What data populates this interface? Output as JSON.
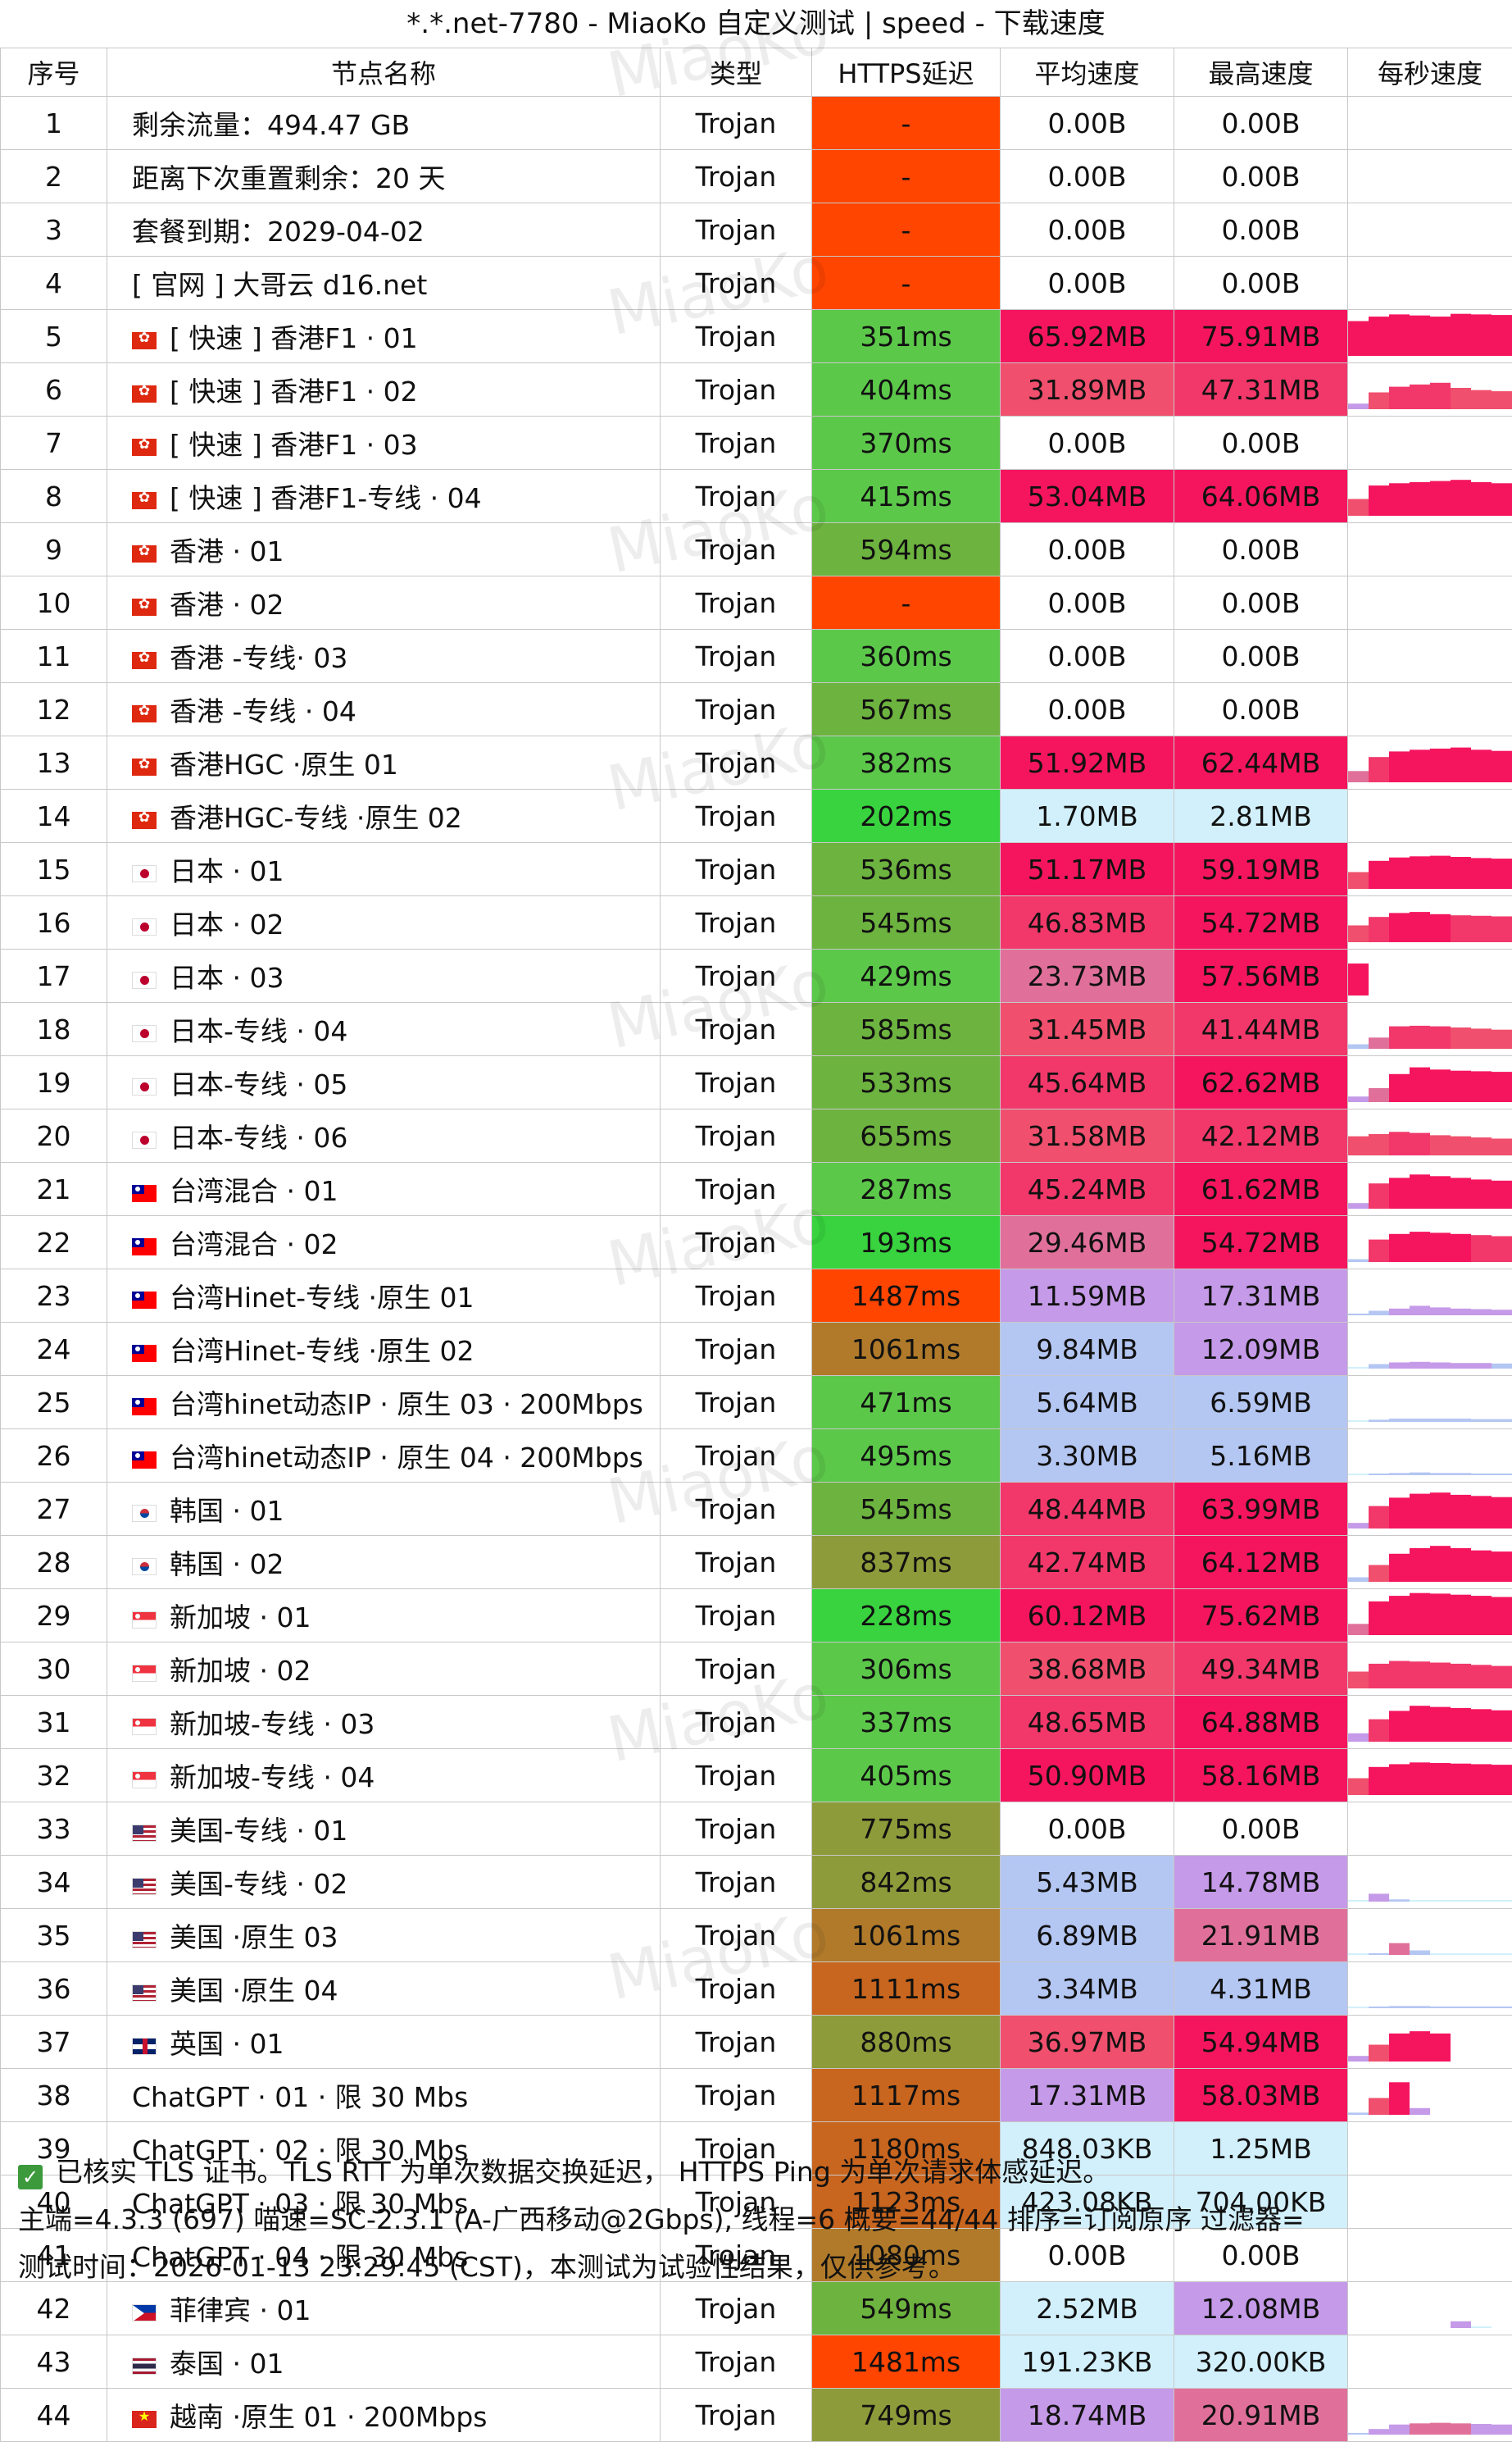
{
  "title": "*.*.net-7780 - MiaoKo 自定义测试 | speed - 下载速度",
  "watermark": "MiaoKo",
  "headers": [
    "序号",
    "节点名称",
    "类型",
    "HTTPS延迟",
    "平均速度",
    "最高速度",
    "每秒速度"
  ],
  "rows": [
    {
      "no": "1",
      "name": "剩余流量：494.47 GB",
      "flag": "",
      "type": "Trojan",
      "latency": "-",
      "avg": "0.00B",
      "max": "0.00B",
      "bars": []
    },
    {
      "no": "2",
      "name": "距离下次重置剩余：20 天",
      "flag": "",
      "type": "Trojan",
      "latency": "-",
      "avg": "0.00B",
      "max": "0.00B",
      "bars": []
    },
    {
      "no": "3",
      "name": "套餐到期：2029-04-02",
      "flag": "",
      "type": "Trojan",
      "latency": "-",
      "avg": "0.00B",
      "max": "0.00B",
      "bars": []
    },
    {
      "no": "4",
      "name": "[ 官网 ] 大哥云 d16.net",
      "flag": "",
      "type": "Trojan",
      "latency": "-",
      "avg": "0.00B",
      "max": "0.00B",
      "bars": []
    },
    {
      "no": "5",
      "name": "[ 快速 ] 香港F1 · 01",
      "flag": "hk",
      "type": "Trojan",
      "latency": "351ms",
      "avg": "65.92MB",
      "max": "75.91MB",
      "bars": [
        62,
        70,
        74,
        72,
        70,
        75,
        74,
        73
      ]
    },
    {
      "no": "6",
      "name": "[ 快速 ] 香港F1 · 02",
      "flag": "hk",
      "type": "Trojan",
      "latency": "404ms",
      "avg": "31.89MB",
      "max": "47.31MB",
      "bars": [
        10,
        30,
        40,
        44,
        47,
        38,
        34,
        32
      ]
    },
    {
      "no": "7",
      "name": "[ 快速 ] 香港F1 · 03",
      "flag": "hk",
      "type": "Trojan",
      "latency": "370ms",
      "avg": "0.00B",
      "max": "0.00B",
      "bars": []
    },
    {
      "no": "8",
      "name": "[ 快速 ] 香港F1-专线 · 04",
      "flag": "hk",
      "type": "Trojan",
      "latency": "415ms",
      "avg": "53.04MB",
      "max": "64.06MB",
      "bars": [
        30,
        54,
        58,
        60,
        62,
        64,
        60,
        58
      ]
    },
    {
      "no": "9",
      "name": "香港 · 01",
      "flag": "hk",
      "type": "Trojan",
      "latency": "594ms",
      "avg": "0.00B",
      "max": "0.00B",
      "bars": []
    },
    {
      "no": "10",
      "name": "香港 · 02",
      "flag": "hk",
      "type": "Trojan",
      "latency": "-",
      "avg": "0.00B",
      "max": "0.00B",
      "bars": []
    },
    {
      "no": "11",
      "name": "香港 -专线· 03",
      "flag": "hk",
      "type": "Trojan",
      "latency": "360ms",
      "avg": "0.00B",
      "max": "0.00B",
      "bars": []
    },
    {
      "no": "12",
      "name": "香港 -专线 · 04",
      "flag": "hk",
      "type": "Trojan",
      "latency": "567ms",
      "avg": "0.00B",
      "max": "0.00B",
      "bars": []
    },
    {
      "no": "13",
      "name": "香港HGC ·原生  01",
      "flag": "hk",
      "type": "Trojan",
      "latency": "382ms",
      "avg": "51.92MB",
      "max": "62.44MB",
      "bars": [
        20,
        45,
        55,
        58,
        60,
        62,
        58,
        56
      ]
    },
    {
      "no": "14",
      "name": "香港HGC-专线 ·原生  02",
      "flag": "hk",
      "type": "Trojan",
      "latency": "202ms",
      "avg": "1.70MB",
      "max": "2.81MB",
      "bars": []
    },
    {
      "no": "15",
      "name": "日本 · 01",
      "flag": "jp",
      "type": "Trojan",
      "latency": "536ms",
      "avg": "51.17MB",
      "max": "59.19MB",
      "bars": [
        30,
        50,
        56,
        58,
        59,
        57,
        55,
        54
      ]
    },
    {
      "no": "16",
      "name": "日本 · 02",
      "flag": "jp",
      "type": "Trojan",
      "latency": "545ms",
      "avg": "46.83MB",
      "max": "54.72MB",
      "bars": [
        30,
        45,
        52,
        54,
        50,
        48,
        47,
        46
      ]
    },
    {
      "no": "17",
      "name": "日本 · 03",
      "flag": "jp",
      "type": "Trojan",
      "latency": "429ms",
      "avg": "23.73MB",
      "max": "57.56MB",
      "bars": [
        57,
        0,
        0,
        0,
        0,
        0,
        0,
        0
      ]
    },
    {
      "no": "18",
      "name": "日本-专线 · 04",
      "flag": "jp",
      "type": "Trojan",
      "latency": "585ms",
      "avg": "31.45MB",
      "max": "41.44MB",
      "bars": [
        8,
        20,
        40,
        41,
        40,
        38,
        36,
        34
      ]
    },
    {
      "no": "19",
      "name": "日本-专线 · 05",
      "flag": "jp",
      "type": "Trojan",
      "latency": "533ms",
      "avg": "45.64MB",
      "max": "62.62MB",
      "bars": [
        10,
        25,
        50,
        62,
        58,
        56,
        55,
        54
      ]
    },
    {
      "no": "20",
      "name": "日本-专线 · 06",
      "flag": "jp",
      "type": "Trojan",
      "latency": "655ms",
      "avg": "31.58MB",
      "max": "42.12MB",
      "bars": [
        34,
        38,
        42,
        40,
        36,
        34,
        32,
        30
      ]
    },
    {
      "no": "21",
      "name": "台湾混合 · 01",
      "flag": "tw",
      "type": "Trojan",
      "latency": "287ms",
      "avg": "45.24MB",
      "max": "61.62MB",
      "bars": [
        10,
        45,
        55,
        61,
        58,
        55,
        52,
        50
      ]
    },
    {
      "no": "22",
      "name": "台湾混合 · 02",
      "flag": "tw",
      "type": "Trojan",
      "latency": "193ms",
      "avg": "29.46MB",
      "max": "54.72MB",
      "bars": [
        5,
        40,
        50,
        54,
        52,
        50,
        48,
        46
      ]
    },
    {
      "no": "23",
      "name": "台湾Hinet-专线 ·原生 01",
      "flag": "tw",
      "type": "Trojan",
      "latency": "1487ms",
      "avg": "11.59MB",
      "max": "17.31MB",
      "bars": [
        3,
        8,
        12,
        17,
        14,
        12,
        11,
        10
      ]
    },
    {
      "no": "24",
      "name": "台湾Hinet-专线 ·原生 02",
      "flag": "tw",
      "type": "Trojan",
      "latency": "1061ms",
      "avg": "9.84MB",
      "max": "12.09MB",
      "bars": [
        2,
        8,
        11,
        12,
        11,
        10,
        10,
        9
      ]
    },
    {
      "no": "25",
      "name": "台湾hinet动态IP · 原生 03 · 200Mbps",
      "flag": "tw",
      "type": "Trojan",
      "latency": "471ms",
      "avg": "5.64MB",
      "max": "6.59MB",
      "bars": [
        1,
        4,
        6,
        6,
        6,
        6,
        5,
        5
      ]
    },
    {
      "no": "26",
      "name": "台湾hinet动态IP · 原生 04 · 200Mbps",
      "flag": "tw",
      "type": "Trojan",
      "latency": "495ms",
      "avg": "3.30MB",
      "max": "5.16MB",
      "bars": [
        1,
        3,
        4,
        5,
        4,
        4,
        3,
        3
      ]
    },
    {
      "no": "27",
      "name": "韩国 · 01",
      "flag": "kr",
      "type": "Trojan",
      "latency": "545ms",
      "avg": "48.44MB",
      "max": "63.99MB",
      "bars": [
        10,
        40,
        55,
        62,
        64,
        60,
        58,
        56
      ]
    },
    {
      "no": "28",
      "name": "韩国 · 02",
      "flag": "kr",
      "type": "Trojan",
      "latency": "837ms",
      "avg": "42.74MB",
      "max": "64.12MB",
      "bars": [
        8,
        30,
        50,
        60,
        64,
        60,
        56,
        54
      ]
    },
    {
      "no": "29",
      "name": "新加坡 · 01",
      "flag": "sg",
      "type": "Trojan",
      "latency": "228ms",
      "avg": "60.12MB",
      "max": "75.62MB",
      "bars": [
        20,
        60,
        70,
        75,
        74,
        72,
        70,
        68
      ]
    },
    {
      "no": "30",
      "name": "新加坡 · 02",
      "flag": "sg",
      "type": "Trojan",
      "latency": "306ms",
      "avg": "38.68MB",
      "max": "49.34MB",
      "bars": [
        30,
        44,
        49,
        48,
        46,
        44,
        42,
        40
      ]
    },
    {
      "no": "31",
      "name": "新加坡-专线 · 03",
      "flag": "sg",
      "type": "Trojan",
      "latency": "337ms",
      "avg": "48.65MB",
      "max": "64.88MB",
      "bars": [
        15,
        40,
        55,
        64,
        62,
        60,
        58,
        56
      ]
    },
    {
      "no": "32",
      "name": "新加坡-专线 · 04",
      "flag": "sg",
      "type": "Trojan",
      "latency": "405ms",
      "avg": "50.90MB",
      "max": "58.16MB",
      "bars": [
        30,
        50,
        55,
        58,
        57,
        56,
        55,
        54
      ]
    },
    {
      "no": "33",
      "name": "美国-专线 · 01",
      "flag": "us",
      "type": "Trojan",
      "latency": "775ms",
      "avg": "0.00B",
      "max": "0.00B",
      "bars": []
    },
    {
      "no": "34",
      "name": "美国-专线 · 02",
      "flag": "us",
      "type": "Trojan",
      "latency": "842ms",
      "avg": "5.43MB",
      "max": "14.78MB",
      "bars": [
        2,
        14,
        4,
        2,
        1,
        1,
        1,
        1
      ]
    },
    {
      "no": "35",
      "name": "美国 ·原生 03",
      "flag": "us",
      "type": "Trojan",
      "latency": "1061ms",
      "avg": "6.89MB",
      "max": "21.91MB",
      "bars": [
        1,
        3,
        21,
        8,
        2,
        1,
        1,
        1
      ]
    },
    {
      "no": "36",
      "name": "美国 ·原生 04",
      "flag": "us",
      "type": "Trojan",
      "latency": "1111ms",
      "avg": "3.34MB",
      "max": "4.31MB",
      "bars": [
        1,
        3,
        4,
        4,
        3,
        3,
        3,
        3
      ]
    },
    {
      "no": "37",
      "name": "英国 · 01",
      "flag": "gb",
      "type": "Trojan",
      "latency": "880ms",
      "avg": "36.97MB",
      "max": "54.94MB",
      "bars": [
        10,
        30,
        50,
        54,
        50,
        0,
        0,
        0
      ]
    },
    {
      "no": "38",
      "name": "ChatGPT · 01 · 限 30 Mbs",
      "flag": "",
      "type": "Trojan",
      "latency": "1117ms",
      "avg": "17.31MB",
      "max": "58.03MB",
      "bars": [
        4,
        30,
        58,
        12,
        0,
        0,
        0,
        0
      ]
    },
    {
      "no": "39",
      "name": "ChatGPT · 02 · 限 30 Mbs",
      "flag": "",
      "type": "Trojan",
      "latency": "1180ms",
      "avg": "848.03KB",
      "max": "1.25MB",
      "bars": []
    },
    {
      "no": "40",
      "name": "ChatGPT · 03 · 限 30 Mbs",
      "flag": "",
      "type": "Trojan",
      "latency": "1123ms",
      "avg": "423.08KB",
      "max": "704.00KB",
      "bars": []
    },
    {
      "no": "41",
      "name": "ChatGPT · 04 · 限 30 Mbs",
      "flag": "",
      "type": "Trojan",
      "latency": "1080ms",
      "avg": "0.00B",
      "max": "0.00B",
      "bars": []
    },
    {
      "no": "42",
      "name": "菲律宾 · 01",
      "flag": "ph",
      "type": "Trojan",
      "latency": "549ms",
      "avg": "2.52MB",
      "max": "12.08MB",
      "bars": [
        0,
        0,
        0,
        0,
        0,
        12,
        2,
        0
      ]
    },
    {
      "no": "43",
      "name": "泰国 · 01",
      "flag": "th",
      "type": "Trojan",
      "latency": "1481ms",
      "avg": "191.23KB",
      "max": "320.00KB",
      "bars": []
    },
    {
      "no": "44",
      "name": "越南 ·原生 01 · 200Mbps",
      "flag": "vn",
      "type": "Trojan",
      "latency": "749ms",
      "avg": "18.74MB",
      "max": "20.91MB",
      "bars": [
        3,
        10,
        18,
        20,
        21,
        20,
        19,
        18
      ]
    }
  ],
  "footer": {
    "line1": "已核实 TLS 证书。TLS RTT 为单次数据交换延迟， HTTPS Ping 为单次请求体感延迟。",
    "line2": "主端=4.3.3 (697) 喵速=SC-2.3.1 (A-广西移动@2Gbps), 线程=6 概要=44/44 排序=订阅原序 过滤器=",
    "line3": "测试时间：2026-01-13 23:29:45 (CST)，本测试为试验性结果，仅供参考。"
  },
  "colors": {
    "latency_fail": "#ff4500",
    "latency_fast": "#38d33e",
    "latency_good": "#5cc84a",
    "latency_ok": "#6db33f",
    "latency_mid": "#8e9b3a",
    "latency_slow": "#b07a2a",
    "latency_very_slow": "#c8651e",
    "speed_top": "#f5155f",
    "speed_high": "#f2386a",
    "speed_mid": "#e0709a",
    "speed_lowmid": "#c59ae8",
    "speed_low": "#b4c6f2",
    "speed_tiny": "#d2f0fb"
  }
}
